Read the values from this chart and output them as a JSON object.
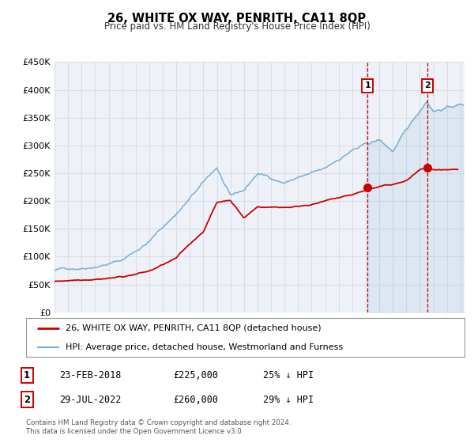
{
  "title": "26, WHITE OX WAY, PENRITH, CA11 8QP",
  "subtitle": "Price paid vs. HM Land Registry's House Price Index (HPI)",
  "ylim": [
    0,
    450000
  ],
  "yticks": [
    0,
    50000,
    100000,
    150000,
    200000,
    250000,
    300000,
    350000,
    400000,
    450000
  ],
  "ytick_labels": [
    "£0",
    "£50K",
    "£100K",
    "£150K",
    "£200K",
    "£250K",
    "£300K",
    "£350K",
    "£400K",
    "£450K"
  ],
  "xlim_start": 1995.0,
  "xlim_end": 2025.3,
  "hpi_color": "#7aadd4",
  "price_color": "#cc0000",
  "marker_color": "#cc0000",
  "vline_color": "#cc0000",
  "plot_bg_color": "#eef2f8",
  "grid_color": "#d8dde8",
  "sale1_x": 2018.13,
  "sale1_y": 225000,
  "sale1_label": "1",
  "sale2_x": 2022.57,
  "sale2_y": 260000,
  "sale2_label": "2",
  "legend_line1": "26, WHITE OX WAY, PENRITH, CA11 8QP (detached house)",
  "legend_line2": "HPI: Average price, detached house, Westmorland and Furness",
  "annot1_num": "1",
  "annot1_date": "23-FEB-2018",
  "annot1_price": "£225,000",
  "annot1_hpi": "25% ↓ HPI",
  "annot2_num": "2",
  "annot2_date": "29-JUL-2022",
  "annot2_price": "£260,000",
  "annot2_hpi": "29% ↓ HPI",
  "footer1": "Contains HM Land Registry data © Crown copyright and database right 2024.",
  "footer2": "This data is licensed under the Open Government Licence v3.0."
}
